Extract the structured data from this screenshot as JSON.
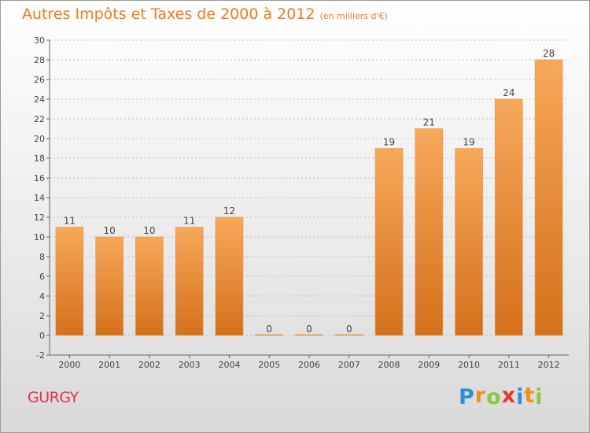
{
  "title": "Autres Impôts et Taxes de 2000 à 2012",
  "unit_label": "(en milliers d'€)",
  "commune": "GURGY",
  "logo": {
    "letters": [
      "P",
      "r",
      "o",
      "x",
      "i",
      "t",
      "i"
    ],
    "colors": [
      "#2e8fd8",
      "#f28c1c",
      "#8cc63e",
      "#e6332a",
      "#2e8fd8",
      "#f28c1c",
      "#8cc63e"
    ]
  },
  "colors": {
    "bar_top": "#f7a85a",
    "bar_bottom": "#d4701a",
    "title": "#f27a1c",
    "commune": "#e0334f"
  },
  "chart_data": {
    "type": "bar",
    "categories": [
      "2000",
      "2001",
      "2002",
      "2003",
      "2004",
      "2005",
      "2006",
      "2007",
      "2008",
      "2009",
      "2010",
      "2011",
      "2012"
    ],
    "values": [
      11,
      10,
      10,
      11,
      12,
      0,
      0,
      0,
      19,
      21,
      19,
      24,
      28
    ],
    "ylim": [
      -2,
      30
    ],
    "yticks": [
      -2,
      0,
      2,
      4,
      6,
      8,
      10,
      12,
      14,
      16,
      18,
      20,
      22,
      24,
      26,
      28,
      30
    ],
    "grid": true
  }
}
